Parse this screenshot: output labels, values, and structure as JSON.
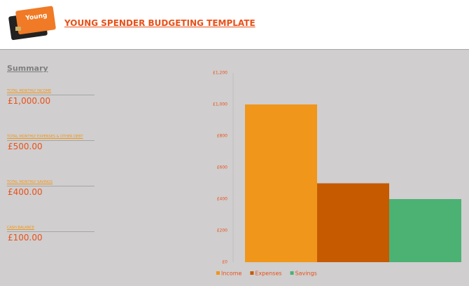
{
  "header": {
    "title": "YOUNG SPENDER BUDGETING TEMPLATE",
    "logo": "Young"
  },
  "summary": {
    "heading": "Summary",
    "items": [
      {
        "label": "TOTAL MONTHLY INCOME",
        "value": "£1,000.00"
      },
      {
        "label": "TOTAL MONTHLY EXPENSES & OTHER DEBT",
        "value": "£500.00"
      },
      {
        "label": "TOTAL MONTHLY SAVINGS",
        "value": "£400.00"
      },
      {
        "label": "CASH BALANCE",
        "value": "£100.00"
      }
    ]
  },
  "chart_data": {
    "type": "bar",
    "categories": [
      null
    ],
    "series": [
      {
        "name": "Income",
        "color": "#f0961a",
        "values": [
          1000
        ]
      },
      {
        "name": "Expenses",
        "color": "#c55a00",
        "values": [
          500
        ]
      },
      {
        "name": "Savings",
        "color": "#4bb274",
        "values": [
          400
        ]
      }
    ],
    "ylim": [
      0,
      1200
    ],
    "yticks": [
      {
        "value": 0,
        "label": "£0"
      },
      {
        "value": 200,
        "label": "£200"
      },
      {
        "value": 400,
        "label": "£400"
      },
      {
        "value": 600,
        "label": "£600"
      },
      {
        "value": 800,
        "label": "£800"
      },
      {
        "value": 1000,
        "label": "£1,000"
      },
      {
        "value": 1200,
        "label": "£1,200"
      }
    ],
    "grid": false,
    "legend": "bottom"
  }
}
